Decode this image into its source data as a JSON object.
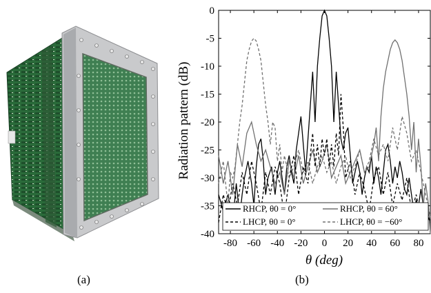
{
  "figure": {
    "caption_a": "(a)",
    "caption_b": "(b)",
    "photo_description_icon": "antenna-array-photo-icon"
  },
  "chart_data": {
    "type": "line",
    "title": "",
    "xlabel": "θ (deg)",
    "ylabel": "Radiation pattern (dB)",
    "xlim": [
      -90,
      90
    ],
    "ylim": [
      -40,
      0
    ],
    "xticks": [
      -80,
      -60,
      -40,
      -20,
      0,
      20,
      40,
      60,
      80
    ],
    "yticks": [
      0,
      -5,
      -10,
      -15,
      -20,
      -25,
      -30,
      -35,
      -40
    ],
    "grid": false,
    "legend": "bottom",
    "legend_entries": [
      {
        "label": "RHCP, θ0 = 0°",
        "style": "solid",
        "color": "#000000"
      },
      {
        "label": "RHCP, θ0 = 60°",
        "style": "solid",
        "color": "#707070"
      },
      {
        "label": "LHCP, θ0 = 0°",
        "style": "dashed",
        "color": "#000000"
      },
      {
        "label": "LHCP, θ0 = −60°",
        "style": "dashed",
        "color": "#707070"
      }
    ],
    "series": [
      {
        "name": "RHCP, θ0 = 0°",
        "color": "#000000",
        "dash": "",
        "x": [
          -90,
          -86,
          -82,
          -78,
          -75,
          -72,
          -70,
          -68,
          -65,
          -62,
          -60,
          -58,
          -56,
          -54,
          -52,
          -50,
          -48,
          -45,
          -42,
          -40,
          -38,
          -36,
          -34,
          -32,
          -30,
          -28,
          -26,
          -24,
          -22,
          -20,
          -18,
          -16,
          -14,
          -12,
          -10,
          -8,
          -6,
          -4,
          -2,
          0,
          2,
          4,
          6,
          8,
          10,
          12,
          14,
          16,
          18,
          20,
          22,
          24,
          26,
          28,
          30,
          32,
          34,
          36,
          38,
          40,
          42,
          44,
          46,
          48,
          50,
          52,
          54,
          56,
          58,
          60,
          62,
          64,
          66,
          68,
          70,
          72,
          74,
          76,
          78,
          80,
          82,
          84,
          86,
          88,
          90
        ],
        "y": [
          -33,
          -36,
          -33,
          -38,
          -31,
          -37,
          -33,
          -30,
          -27,
          -31,
          -35,
          -28,
          -24,
          -23,
          -27,
          -33,
          -30,
          -28,
          -33,
          -29,
          -27,
          -30,
          -33,
          -28,
          -26,
          -29,
          -31,
          -25,
          -22,
          -19,
          -24,
          -29,
          -23,
          -17,
          -11,
          -20,
          -10,
          -5,
          -1,
          0,
          -1,
          -5,
          -10,
          -20,
          -11,
          -17,
          -23,
          -25,
          -22,
          -21,
          -26,
          -31,
          -29,
          -27,
          -29,
          -33,
          -30,
          -28,
          -29,
          -26,
          -31,
          -28,
          -30,
          -33,
          -29,
          -25,
          -24,
          -27,
          -31,
          -28,
          -30,
          -27,
          -29,
          -32,
          -33,
          -30,
          -33,
          -36,
          -34,
          -35,
          -32,
          -35,
          -36,
          -37,
          -38
        ]
      },
      {
        "name": "RHCP, θ0 = 60°",
        "color": "#707070",
        "dash": "",
        "x": [
          -90,
          -86,
          -82,
          -78,
          -74,
          -70,
          -66,
          -62,
          -58,
          -54,
          -50,
          -46,
          -42,
          -38,
          -34,
          -30,
          -26,
          -22,
          -18,
          -14,
          -10,
          -6,
          -2,
          2,
          6,
          10,
          14,
          18,
          22,
          26,
          30,
          34,
          38,
          42,
          44,
          46,
          48,
          50,
          52,
          54,
          56,
          58,
          60,
          62,
          64,
          66,
          68,
          70,
          72,
          74,
          76,
          78,
          80,
          82,
          84,
          86,
          88,
          90
        ],
        "y": [
          -26,
          -31,
          -27,
          -33,
          -24,
          -28,
          -22,
          -20,
          -24,
          -27,
          -25,
          -28,
          -31,
          -29,
          -33,
          -27,
          -30,
          -26,
          -31,
          -28,
          -25,
          -29,
          -27,
          -24,
          -30,
          -28,
          -26,
          -31,
          -29,
          -27,
          -25,
          -29,
          -28,
          -24,
          -21,
          -27,
          -19,
          -14,
          -11,
          -9,
          -7,
          -5.8,
          -5.3,
          -5.8,
          -7,
          -9,
          -12,
          -15,
          -19,
          -25,
          -20,
          -29,
          -23,
          -28,
          -35,
          -31,
          -34,
          -40
        ]
      },
      {
        "name": "LHCP, θ0 = 0°",
        "color": "#000000",
        "dash": "4,3",
        "x": [
          -90,
          -86,
          -82,
          -78,
          -74,
          -70,
          -66,
          -62,
          -58,
          -54,
          -50,
          -46,
          -42,
          -38,
          -34,
          -30,
          -26,
          -22,
          -18,
          -14,
          -12,
          -10,
          -8,
          -6,
          -4,
          -2,
          0,
          2,
          4,
          6,
          8,
          10,
          12,
          14,
          16,
          18,
          22,
          26,
          30,
          34,
          38,
          42,
          46,
          50,
          54,
          58,
          62,
          66,
          70,
          74,
          78,
          82,
          86,
          90
        ],
        "y": [
          -38,
          -33,
          -36,
          -31,
          -35,
          -29,
          -33,
          -27,
          -31,
          -36,
          -29,
          -33,
          -28,
          -31,
          -37,
          -30,
          -26,
          -33,
          -28,
          -31,
          -26,
          -22,
          -28,
          -24,
          -28,
          -23,
          -26,
          -23,
          -28,
          -24,
          -28,
          -22,
          -26,
          -15,
          -21,
          -30,
          -27,
          -33,
          -29,
          -32,
          -36,
          -30,
          -28,
          -33,
          -29,
          -35,
          -31,
          -34,
          -30,
          -36,
          -33,
          -37,
          -35,
          -38
        ]
      },
      {
        "name": "LHCP, θ0 = −60°",
        "color": "#707070",
        "dash": "4,3",
        "x": [
          -90,
          -86,
          -82,
          -80,
          -78,
          -76,
          -74,
          -72,
          -70,
          -68,
          -66,
          -64,
          -62,
          -60,
          -58,
          -56,
          -54,
          -52,
          -50,
          -48,
          -46,
          -44,
          -42,
          -40,
          -38,
          -36,
          -34,
          -30,
          -26,
          -22,
          -18,
          -14,
          -10,
          -6,
          -2,
          2,
          6,
          10,
          14,
          18,
          22,
          26,
          30,
          34,
          38,
          42,
          46,
          50,
          54,
          58,
          62,
          66,
          70,
          74,
          78,
          82,
          86,
          90
        ],
        "y": [
          -31,
          -27,
          -35,
          -29,
          -30,
          -28,
          -24,
          -20,
          -17,
          -13,
          -9,
          -7,
          -5.5,
          -5,
          -5.5,
          -7,
          -9,
          -13,
          -17,
          -20,
          -24,
          -20,
          -21,
          -27,
          -24,
          -29,
          -26,
          -30,
          -28,
          -25,
          -29,
          -27,
          -31,
          -28,
          -26,
          -29,
          -27,
          -31,
          -28,
          -26,
          -30,
          -28,
          -25,
          -29,
          -27,
          -23,
          -26,
          -24,
          -27,
          -21,
          -25,
          -19,
          -22,
          -27,
          -25,
          -29,
          -33,
          -37
        ]
      }
    ]
  }
}
